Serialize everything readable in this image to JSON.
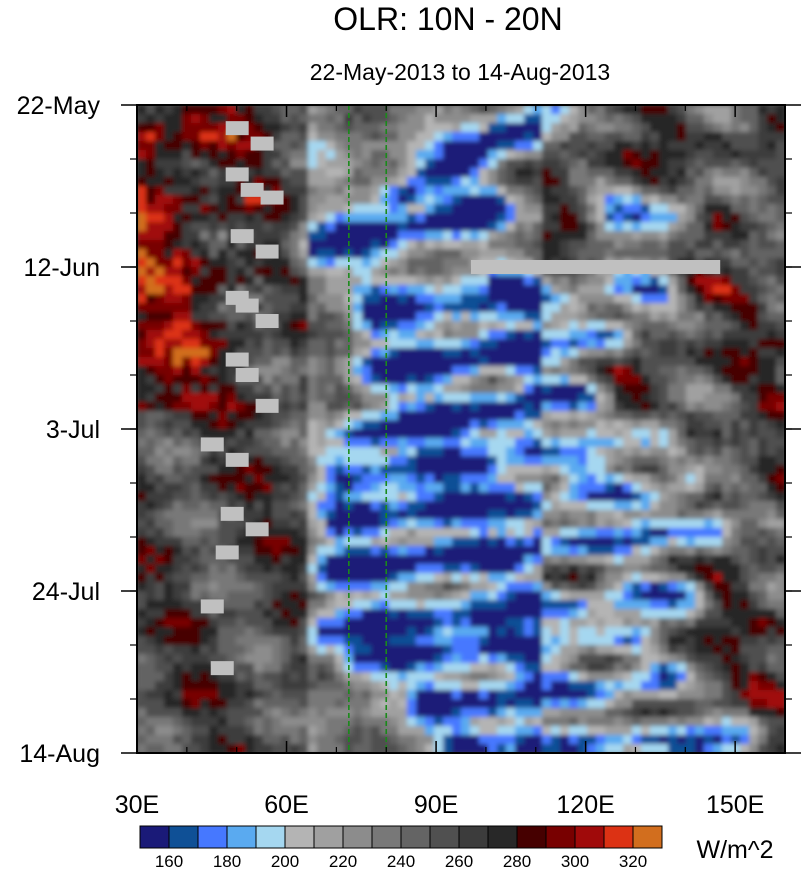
{
  "chart_data": {
    "type": "heatmap",
    "title": "OLR: 10N - 20N",
    "subtitle": "22-May-2013 to 14-Aug-2013",
    "x_axis": {
      "range": [
        30,
        160
      ],
      "unit": "degrees east longitude",
      "ticks": [
        {
          "value": 30,
          "label": "30E"
        },
        {
          "value": 60,
          "label": "60E"
        },
        {
          "value": 90,
          "label": "90E"
        },
        {
          "value": 120,
          "label": "120E"
        },
        {
          "value": 150,
          "label": "150E"
        }
      ],
      "minor_ticks": [
        40,
        50,
        70,
        80,
        100,
        110,
        130,
        140,
        160
      ]
    },
    "y_axis": {
      "range": [
        "2013-05-22",
        "2013-08-14"
      ],
      "direction": "time increases downward",
      "ticks": [
        {
          "date": "2013-05-22",
          "label": "22-May"
        },
        {
          "date": "2013-06-12",
          "label": "12-Jun"
        },
        {
          "date": "2013-07-03",
          "label": "3-Jul"
        },
        {
          "date": "2013-07-24",
          "label": "24-Jul"
        },
        {
          "date": "2013-08-14",
          "label": "14-Aug"
        }
      ],
      "minor_tick_interval_days": 7
    },
    "colorbar": {
      "units": "W/m^2",
      "levels": [
        150,
        160,
        170,
        180,
        190,
        200,
        210,
        220,
        230,
        240,
        250,
        260,
        270,
        280,
        290,
        300,
        310,
        320
      ],
      "labels": [
        "160",
        "180",
        "200",
        "220",
        "240",
        "260",
        "280",
        "300",
        "320"
      ],
      "colors": [
        "#1a1a78",
        "#0f5096",
        "#4678ff",
        "#5aaaf0",
        "#a5d7f0",
        "#b4b4b4",
        "#a0a0a0",
        "#8c8c8c",
        "#787878",
        "#646464",
        "#505050",
        "#3c3c3c",
        "#282828",
        "#460000",
        "#780000",
        "#a00a0a",
        "#dc3214",
        "#d26e1e"
      ]
    },
    "reference_lines": [
      {
        "longitude": 72.5,
        "style": "green dashed"
      },
      {
        "longitude": 80,
        "style": "green dashed"
      }
    ],
    "missing_data_color": "#c0c0c0",
    "features": [
      {
        "type": "missing",
        "lon_range": [
          97,
          147
        ],
        "date": "2013-06-12"
      },
      {
        "type": "low_olr_streak",
        "start": {
          "lon": 82,
          "date": "2013-06-03"
        },
        "end": {
          "lon": 113,
          "date": "2013-05-23"
        }
      },
      {
        "type": "low_olr_streak",
        "start": {
          "lon": 65,
          "date": "2013-06-10"
        },
        "end": {
          "lon": 100,
          "date": "2013-06-05"
        }
      },
      {
        "type": "low_olr_streak",
        "start": {
          "lon": 125,
          "date": "2013-06-06"
        },
        "end": {
          "lon": 140,
          "date": "2013-06-05"
        }
      },
      {
        "type": "low_olr_streak",
        "start": {
          "lon": 78,
          "date": "2013-06-18"
        },
        "end": {
          "lon": 135,
          "date": "2013-06-15"
        }
      },
      {
        "type": "low_olr_streak",
        "start": {
          "lon": 78,
          "date": "2013-06-26"
        },
        "end": {
          "lon": 125,
          "date": "2013-06-21"
        }
      },
      {
        "type": "low_olr_streak",
        "start": {
          "lon": 75,
          "date": "2013-07-04"
        },
        "end": {
          "lon": 120,
          "date": "2013-06-28"
        }
      },
      {
        "type": "low_olr_streak",
        "start": {
          "lon": 72,
          "date": "2013-07-09"
        },
        "end": {
          "lon": 135,
          "date": "2013-07-04"
        }
      },
      {
        "type": "low_olr_streak",
        "start": {
          "lon": 72,
          "date": "2013-07-15"
        },
        "end": {
          "lon": 140,
          "date": "2013-07-11"
        }
      },
      {
        "type": "low_olr_streak",
        "start": {
          "lon": 70,
          "date": "2013-07-21"
        },
        "end": {
          "lon": 145,
          "date": "2013-07-16"
        }
      },
      {
        "type": "low_olr_streak",
        "start": {
          "lon": 68,
          "date": "2013-07-29"
        },
        "end": {
          "lon": 140,
          "date": "2013-07-24"
        }
      },
      {
        "type": "low_olr_streak",
        "start": {
          "lon": 75,
          "date": "2013-08-02"
        },
        "end": {
          "lon": 130,
          "date": "2013-07-30"
        }
      },
      {
        "type": "low_olr_streak",
        "start": {
          "lon": 90,
          "date": "2013-08-08"
        },
        "end": {
          "lon": 135,
          "date": "2013-08-05"
        }
      },
      {
        "type": "low_olr_streak",
        "start": {
          "lon": 95,
          "date": "2013-08-13"
        },
        "end": {
          "lon": 150,
          "date": "2013-08-12"
        }
      },
      {
        "type": "high_olr_region",
        "lon_range": [
          30,
          55
        ],
        "date_range": [
          "2013-05-22",
          "2013-07-01"
        ]
      }
    ],
    "grid": false,
    "legend": "bottom colorbar"
  }
}
